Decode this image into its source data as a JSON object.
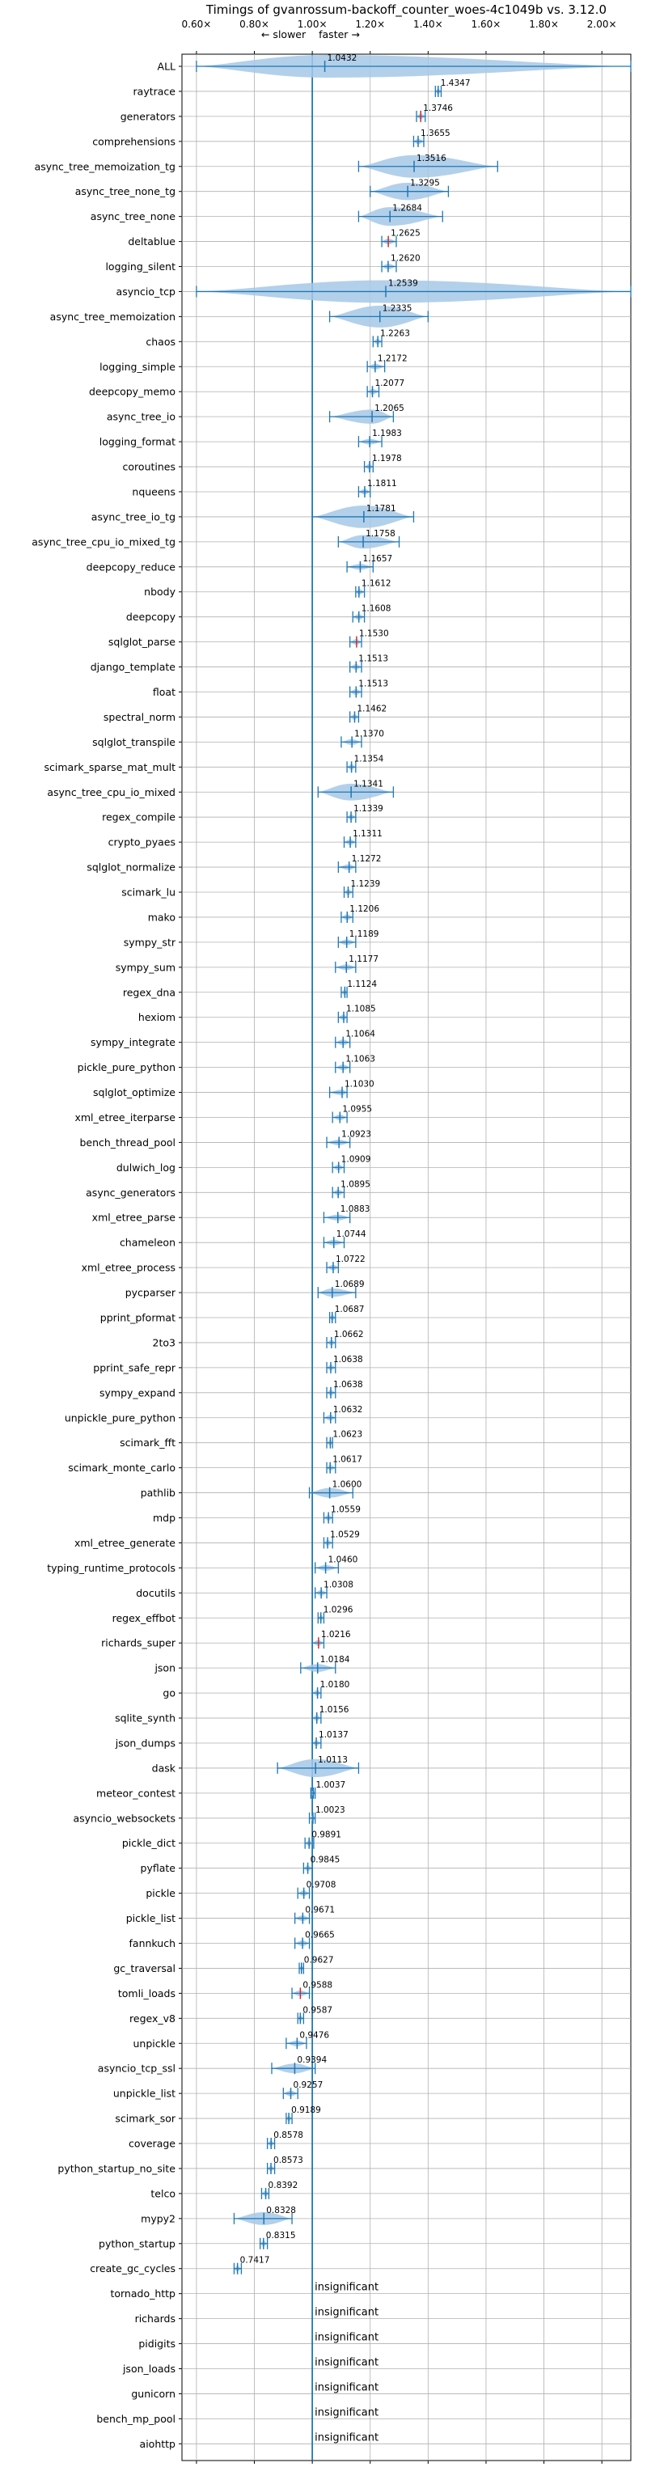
{
  "chart_data": {
    "type": "violin",
    "title": "Timings of gvanrossum-backoff_counter_woes-4c1049b vs. 3.12.0",
    "direction_labels": {
      "slower": "← slower",
      "faster": "faster →"
    },
    "xlim": [
      0.55,
      2.1
    ],
    "x_ticks": [
      0.6,
      0.8,
      1.0,
      1.2,
      1.4,
      1.6,
      1.8,
      2.0
    ],
    "x_tick_labels": [
      "0.60×",
      "0.80×",
      "1.00×",
      "1.20×",
      "1.40×",
      "1.60×",
      "1.80×",
      "2.00×"
    ],
    "grid": true,
    "reference_line": 1.0,
    "insignificant_label": "insignificant",
    "benchmarks": [
      {
        "name": "ALL",
        "value": 1.0432,
        "value_label": "1.0432",
        "min": 0.6,
        "max": 2.1,
        "color": "blue"
      },
      {
        "name": "raytrace",
        "value": 1.4347,
        "value_label": "1.4347",
        "min": 1.425,
        "max": 1.445,
        "color": "blue"
      },
      {
        "name": "generators",
        "value": 1.3746,
        "value_label": "1.3746",
        "min": 1.36,
        "max": 1.39,
        "color": "red"
      },
      {
        "name": "comprehensions",
        "value": 1.3655,
        "value_label": "1.3655",
        "min": 1.35,
        "max": 1.385,
        "color": "blue"
      },
      {
        "name": "async_tree_memoization_tg",
        "value": 1.3516,
        "value_label": "1.3516",
        "min": 1.16,
        "max": 1.64,
        "color": "blue"
      },
      {
        "name": "async_tree_none_tg",
        "value": 1.3295,
        "value_label": "1.3295",
        "min": 1.2,
        "max": 1.47,
        "color": "blue"
      },
      {
        "name": "async_tree_none",
        "value": 1.2684,
        "value_label": "1.2684",
        "min": 1.16,
        "max": 1.45,
        "color": "blue"
      },
      {
        "name": "deltablue",
        "value": 1.2625,
        "value_label": "1.2625",
        "min": 1.24,
        "max": 1.29,
        "color": "red"
      },
      {
        "name": "logging_silent",
        "value": 1.262,
        "value_label": "1.2620",
        "min": 1.24,
        "max": 1.29,
        "color": "blue"
      },
      {
        "name": "asyncio_tcp",
        "value": 1.2539,
        "value_label": "1.2539",
        "min": 0.6,
        "max": 2.1,
        "color": "blue"
      },
      {
        "name": "async_tree_memoization",
        "value": 1.2335,
        "value_label": "1.2335",
        "min": 1.06,
        "max": 1.4,
        "color": "blue"
      },
      {
        "name": "chaos",
        "value": 1.2263,
        "value_label": "1.2263",
        "min": 1.21,
        "max": 1.24,
        "color": "blue"
      },
      {
        "name": "logging_simple",
        "value": 1.2172,
        "value_label": "1.2172",
        "min": 1.19,
        "max": 1.25,
        "color": "blue"
      },
      {
        "name": "deepcopy_memo",
        "value": 1.2077,
        "value_label": "1.2077",
        "min": 1.19,
        "max": 1.23,
        "color": "blue"
      },
      {
        "name": "async_tree_io",
        "value": 1.2065,
        "value_label": "1.2065",
        "min": 1.06,
        "max": 1.28,
        "color": "blue"
      },
      {
        "name": "logging_format",
        "value": 1.1983,
        "value_label": "1.1983",
        "min": 1.16,
        "max": 1.24,
        "color": "blue"
      },
      {
        "name": "coroutines",
        "value": 1.1978,
        "value_label": "1.1978",
        "min": 1.18,
        "max": 1.21,
        "color": "blue"
      },
      {
        "name": "nqueens",
        "value": 1.1811,
        "value_label": "1.1811",
        "min": 1.16,
        "max": 1.2,
        "color": "blue"
      },
      {
        "name": "async_tree_io_tg",
        "value": 1.1781,
        "value_label": "1.1781",
        "min": 1.0,
        "max": 1.35,
        "color": "blue"
      },
      {
        "name": "async_tree_cpu_io_mixed_tg",
        "value": 1.1758,
        "value_label": "1.1758",
        "min": 1.09,
        "max": 1.3,
        "color": "blue"
      },
      {
        "name": "deepcopy_reduce",
        "value": 1.1657,
        "value_label": "1.1657",
        "min": 1.12,
        "max": 1.21,
        "color": "blue"
      },
      {
        "name": "nbody",
        "value": 1.1612,
        "value_label": "1.1612",
        "min": 1.15,
        "max": 1.18,
        "color": "blue"
      },
      {
        "name": "deepcopy",
        "value": 1.1608,
        "value_label": "1.1608",
        "min": 1.14,
        "max": 1.18,
        "color": "blue"
      },
      {
        "name": "sqlglot_parse",
        "value": 1.153,
        "value_label": "1.1530",
        "min": 1.13,
        "max": 1.17,
        "color": "red"
      },
      {
        "name": "django_template",
        "value": 1.1513,
        "value_label": "1.1513",
        "min": 1.13,
        "max": 1.17,
        "color": "blue"
      },
      {
        "name": "float",
        "value": 1.1513,
        "value_label": "1.1513",
        "min": 1.13,
        "max": 1.17,
        "color": "blue"
      },
      {
        "name": "spectral_norm",
        "value": 1.1462,
        "value_label": "1.1462",
        "min": 1.13,
        "max": 1.16,
        "color": "blue"
      },
      {
        "name": "sqlglot_transpile",
        "value": 1.137,
        "value_label": "1.1370",
        "min": 1.1,
        "max": 1.17,
        "color": "blue"
      },
      {
        "name": "scimark_sparse_mat_mult",
        "value": 1.1354,
        "value_label": "1.1354",
        "min": 1.12,
        "max": 1.15,
        "color": "blue"
      },
      {
        "name": "async_tree_cpu_io_mixed",
        "value": 1.1341,
        "value_label": "1.1341",
        "min": 1.02,
        "max": 1.28,
        "color": "blue"
      },
      {
        "name": "regex_compile",
        "value": 1.1339,
        "value_label": "1.1339",
        "min": 1.12,
        "max": 1.15,
        "color": "blue"
      },
      {
        "name": "crypto_pyaes",
        "value": 1.1311,
        "value_label": "1.1311",
        "min": 1.11,
        "max": 1.15,
        "color": "blue"
      },
      {
        "name": "sqlglot_normalize",
        "value": 1.1272,
        "value_label": "1.1272",
        "min": 1.09,
        "max": 1.15,
        "color": "blue"
      },
      {
        "name": "scimark_lu",
        "value": 1.1239,
        "value_label": "1.1239",
        "min": 1.11,
        "max": 1.14,
        "color": "blue"
      },
      {
        "name": "mako",
        "value": 1.1206,
        "value_label": "1.1206",
        "min": 1.1,
        "max": 1.14,
        "color": "blue"
      },
      {
        "name": "sympy_str",
        "value": 1.1189,
        "value_label": "1.1189",
        "min": 1.09,
        "max": 1.15,
        "color": "blue"
      },
      {
        "name": "sympy_sum",
        "value": 1.1177,
        "value_label": "1.1177",
        "min": 1.08,
        "max": 1.15,
        "color": "blue"
      },
      {
        "name": "regex_dna",
        "value": 1.1124,
        "value_label": "1.1124",
        "min": 1.1,
        "max": 1.12,
        "color": "blue"
      },
      {
        "name": "hexiom",
        "value": 1.1085,
        "value_label": "1.1085",
        "min": 1.09,
        "max": 1.12,
        "color": "blue"
      },
      {
        "name": "sympy_integrate",
        "value": 1.1064,
        "value_label": "1.1064",
        "min": 1.08,
        "max": 1.13,
        "color": "blue"
      },
      {
        "name": "pickle_pure_python",
        "value": 1.1063,
        "value_label": "1.1063",
        "min": 1.08,
        "max": 1.13,
        "color": "blue"
      },
      {
        "name": "sqlglot_optimize",
        "value": 1.103,
        "value_label": "1.1030",
        "min": 1.06,
        "max": 1.12,
        "color": "blue"
      },
      {
        "name": "xml_etree_iterparse",
        "value": 1.0955,
        "value_label": "1.0955",
        "min": 1.07,
        "max": 1.12,
        "color": "blue"
      },
      {
        "name": "bench_thread_pool",
        "value": 1.0923,
        "value_label": "1.0923",
        "min": 1.05,
        "max": 1.13,
        "color": "blue"
      },
      {
        "name": "dulwich_log",
        "value": 1.0909,
        "value_label": "1.0909",
        "min": 1.07,
        "max": 1.11,
        "color": "blue"
      },
      {
        "name": "async_generators",
        "value": 1.0895,
        "value_label": "1.0895",
        "min": 1.07,
        "max": 1.11,
        "color": "blue"
      },
      {
        "name": "xml_etree_parse",
        "value": 1.0883,
        "value_label": "1.0883",
        "min": 1.04,
        "max": 1.13,
        "color": "blue"
      },
      {
        "name": "chameleon",
        "value": 1.0744,
        "value_label": "1.0744",
        "min": 1.04,
        "max": 1.11,
        "color": "blue"
      },
      {
        "name": "xml_etree_process",
        "value": 1.0722,
        "value_label": "1.0722",
        "min": 1.05,
        "max": 1.09,
        "color": "blue"
      },
      {
        "name": "pycparser",
        "value": 1.0689,
        "value_label": "1.0689",
        "min": 1.02,
        "max": 1.15,
        "color": "blue"
      },
      {
        "name": "pprint_pformat",
        "value": 1.0687,
        "value_label": "1.0687",
        "min": 1.06,
        "max": 1.08,
        "color": "blue"
      },
      {
        "name": "2to3",
        "value": 1.0662,
        "value_label": "1.0662",
        "min": 1.05,
        "max": 1.08,
        "color": "blue"
      },
      {
        "name": "pprint_safe_repr",
        "value": 1.0638,
        "value_label": "1.0638",
        "min": 1.05,
        "max": 1.08,
        "color": "blue"
      },
      {
        "name": "sympy_expand",
        "value": 1.0638,
        "value_label": "1.0638",
        "min": 1.05,
        "max": 1.08,
        "color": "blue"
      },
      {
        "name": "unpickle_pure_python",
        "value": 1.0632,
        "value_label": "1.0632",
        "min": 1.04,
        "max": 1.08,
        "color": "blue"
      },
      {
        "name": "scimark_fft",
        "value": 1.0623,
        "value_label": "1.0623",
        "min": 1.05,
        "max": 1.07,
        "color": "blue"
      },
      {
        "name": "scimark_monte_carlo",
        "value": 1.0617,
        "value_label": "1.0617",
        "min": 1.05,
        "max": 1.08,
        "color": "blue"
      },
      {
        "name": "pathlib",
        "value": 1.06,
        "value_label": "1.0600",
        "min": 0.99,
        "max": 1.14,
        "color": "blue"
      },
      {
        "name": "mdp",
        "value": 1.0559,
        "value_label": "1.0559",
        "min": 1.04,
        "max": 1.07,
        "color": "blue"
      },
      {
        "name": "xml_etree_generate",
        "value": 1.0529,
        "value_label": "1.0529",
        "min": 1.04,
        "max": 1.07,
        "color": "blue"
      },
      {
        "name": "typing_runtime_protocols",
        "value": 1.046,
        "value_label": "1.0460",
        "min": 1.01,
        "max": 1.09,
        "color": "blue"
      },
      {
        "name": "docutils",
        "value": 1.0308,
        "value_label": "1.0308",
        "min": 1.01,
        "max": 1.05,
        "color": "blue"
      },
      {
        "name": "regex_effbot",
        "value": 1.0296,
        "value_label": "1.0296",
        "min": 1.02,
        "max": 1.04,
        "color": "blue"
      },
      {
        "name": "richards_super",
        "value": 1.0216,
        "value_label": "1.0216",
        "min": 1.0,
        "max": 1.04,
        "color": "red"
      },
      {
        "name": "json",
        "value": 1.0184,
        "value_label": "1.0184",
        "min": 0.96,
        "max": 1.08,
        "color": "blue"
      },
      {
        "name": "go",
        "value": 1.018,
        "value_label": "1.0180",
        "min": 1.0,
        "max": 1.03,
        "color": "blue"
      },
      {
        "name": "sqlite_synth",
        "value": 1.0156,
        "value_label": "1.0156",
        "min": 1.0,
        "max": 1.03,
        "color": "blue"
      },
      {
        "name": "json_dumps",
        "value": 1.0137,
        "value_label": "1.0137",
        "min": 1.0,
        "max": 1.03,
        "color": "blue"
      },
      {
        "name": "dask",
        "value": 1.0113,
        "value_label": "1.0113",
        "min": 0.88,
        "max": 1.16,
        "color": "blue"
      },
      {
        "name": "meteor_contest",
        "value": 1.0037,
        "value_label": "1.0037",
        "min": 0.995,
        "max": 1.01,
        "color": "blue"
      },
      {
        "name": "asyncio_websockets",
        "value": 1.0023,
        "value_label": "1.0023",
        "min": 0.99,
        "max": 1.01,
        "color": "blue"
      },
      {
        "name": "pickle_dict",
        "value": 0.9891,
        "value_label": "0.9891",
        "min": 0.975,
        "max": 1.005,
        "color": "blue"
      },
      {
        "name": "pyflate",
        "value": 0.9845,
        "value_label": "0.9845",
        "min": 0.97,
        "max": 1.0,
        "color": "blue"
      },
      {
        "name": "pickle",
        "value": 0.9708,
        "value_label": "0.9708",
        "min": 0.95,
        "max": 0.99,
        "color": "blue"
      },
      {
        "name": "pickle_list",
        "value": 0.9671,
        "value_label": "0.9671",
        "min": 0.94,
        "max": 0.99,
        "color": "blue"
      },
      {
        "name": "fannkuch",
        "value": 0.9665,
        "value_label": "0.9665",
        "min": 0.94,
        "max": 0.99,
        "color": "blue"
      },
      {
        "name": "gc_traversal",
        "value": 0.9627,
        "value_label": "0.9627",
        "min": 0.955,
        "max": 0.97,
        "color": "blue"
      },
      {
        "name": "tomli_loads",
        "value": 0.9588,
        "value_label": "0.9588",
        "min": 0.93,
        "max": 0.99,
        "color": "red"
      },
      {
        "name": "regex_v8",
        "value": 0.9587,
        "value_label": "0.9587",
        "min": 0.95,
        "max": 0.97,
        "color": "blue"
      },
      {
        "name": "unpickle",
        "value": 0.9476,
        "value_label": "0.9476",
        "min": 0.91,
        "max": 0.98,
        "color": "blue"
      },
      {
        "name": "asyncio_tcp_ssl",
        "value": 0.9394,
        "value_label": "0.9394",
        "min": 0.86,
        "max": 1.01,
        "color": "blue"
      },
      {
        "name": "unpickle_list",
        "value": 0.9257,
        "value_label": "0.9257",
        "min": 0.9,
        "max": 0.95,
        "color": "blue"
      },
      {
        "name": "scimark_sor",
        "value": 0.9189,
        "value_label": "0.9189",
        "min": 0.91,
        "max": 0.93,
        "color": "blue"
      },
      {
        "name": "coverage",
        "value": 0.8578,
        "value_label": "0.8578",
        "min": 0.845,
        "max": 0.87,
        "color": "blue"
      },
      {
        "name": "python_startup_no_site",
        "value": 0.8573,
        "value_label": "0.8573",
        "min": 0.845,
        "max": 0.87,
        "color": "blue"
      },
      {
        "name": "telco",
        "value": 0.8392,
        "value_label": "0.8392",
        "min": 0.825,
        "max": 0.85,
        "color": "blue"
      },
      {
        "name": "mypy2",
        "value": 0.8328,
        "value_label": "0.8328",
        "min": 0.73,
        "max": 0.93,
        "color": "blue"
      },
      {
        "name": "python_startup",
        "value": 0.8315,
        "value_label": "0.8315",
        "min": 0.82,
        "max": 0.845,
        "color": "blue"
      },
      {
        "name": "create_gc_cycles",
        "value": 0.7417,
        "value_label": "0.7417",
        "min": 0.73,
        "max": 0.755,
        "color": "blue"
      },
      {
        "name": "tornado_http",
        "insignificant": true
      },
      {
        "name": "richards",
        "insignificant": true
      },
      {
        "name": "pidigits",
        "insignificant": true
      },
      {
        "name": "json_loads",
        "insignificant": true
      },
      {
        "name": "gunicorn",
        "insignificant": true
      },
      {
        "name": "bench_mp_pool",
        "insignificant": true
      },
      {
        "name": "aiohttp",
        "insignificant": true
      }
    ]
  },
  "colors": {
    "violin_fill": "#a6c8e6",
    "line": "#1f77b4",
    "median_red": "#d62728",
    "grid": "#b0b0b0",
    "reference": "#1f77b4"
  }
}
